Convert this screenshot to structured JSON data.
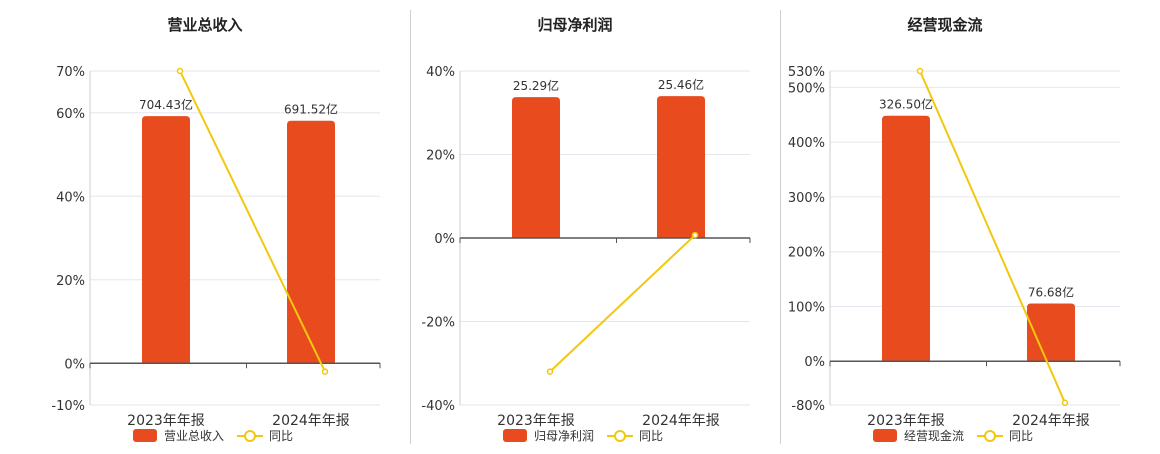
{
  "colors": {
    "bar": "#e84c1e",
    "line": "#f2c80f",
    "axis": "#555555",
    "grid": "#e6e6ee",
    "text": "#333333"
  },
  "chart_data": [
    {
      "type": "bar",
      "title": "营业总收入",
      "categories": [
        "2023年年报",
        "2024年年报"
      ],
      "bar_series": {
        "name": "营业总收入",
        "values": [
          704.43,
          691.52
        ],
        "labels": [
          "704.43亿",
          "691.52亿"
        ]
      },
      "line_series": {
        "name": "同比",
        "values": [
          70.0,
          -2.0
        ]
      },
      "y_ticks": [
        70,
        60,
        40,
        20,
        0,
        -10
      ],
      "y_tick_labels": [
        "70%",
        "60%",
        "40%",
        "20%",
        "0%",
        "-10%"
      ],
      "ylim": [
        -10,
        70
      ],
      "bar_scale_max": 833.2,
      "legend": [
        "营业总收入",
        "同比"
      ],
      "legend_position": "bottom"
    },
    {
      "type": "bar",
      "title": "归母净利润",
      "categories": [
        "2023年年报",
        "2024年年报"
      ],
      "bar_series": {
        "name": "归母净利润",
        "values": [
          25.29,
          25.46
        ],
        "labels": [
          "25.29亿",
          "25.46亿"
        ]
      },
      "line_series": {
        "name": "同比",
        "values": [
          -32.0,
          0.7
        ]
      },
      "y_ticks": [
        40,
        20,
        0,
        -20,
        -40
      ],
      "y_tick_labels": [
        "40%",
        "20%",
        "0%",
        "-20%",
        "-40%"
      ],
      "ylim": [
        -40,
        40
      ],
      "bar_scale_max": 29.97,
      "legend": [
        "归母净利润",
        "同比"
      ],
      "legend_position": "bottom"
    },
    {
      "type": "bar",
      "title": "经营现金流",
      "categories": [
        "2023年年报",
        "2024年年报"
      ],
      "bar_series": {
        "name": "经营现金流",
        "values": [
          326.5,
          76.68
        ],
        "labels": [
          "326.50亿",
          "76.68亿"
        ]
      },
      "line_series": {
        "name": "同比",
        "values": [
          530.0,
          -76.0
        ]
      },
      "y_ticks": [
        530,
        500,
        400,
        300,
        200,
        100,
        0,
        -80
      ],
      "y_tick_labels": [
        "530%",
        "500%",
        "400%",
        "300%",
        "200%",
        "100%",
        "0%",
        "-80%"
      ],
      "ylim": [
        -80,
        530
      ],
      "bar_scale_max": 386.0,
      "legend": [
        "经营现金流",
        "同比"
      ],
      "legend_position": "bottom"
    }
  ]
}
